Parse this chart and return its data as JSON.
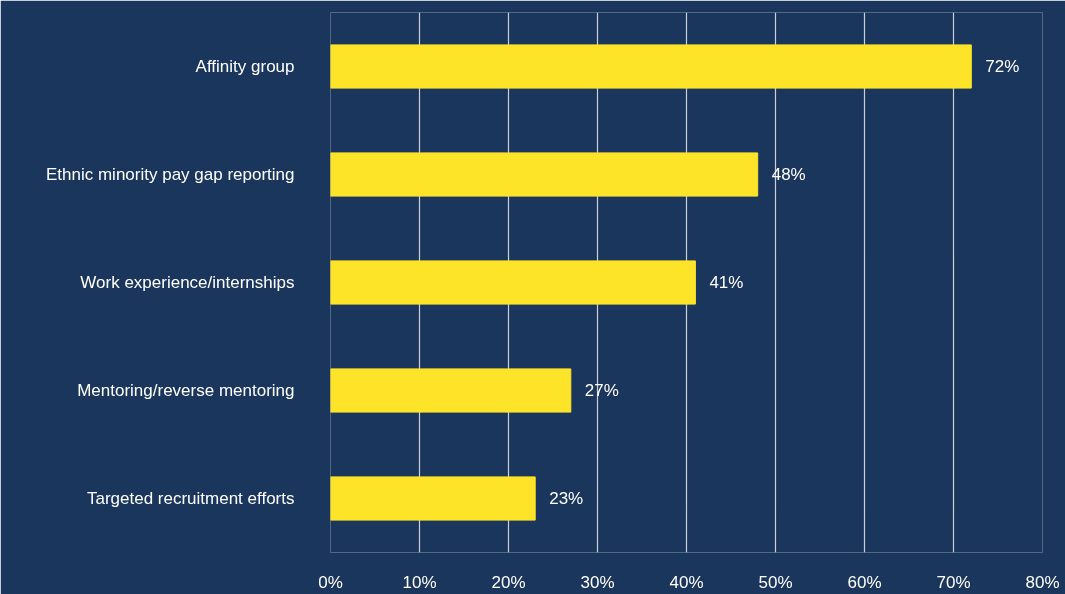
{
  "chart_data": {
    "type": "bar",
    "orientation": "horizontal",
    "categories": [
      "Affinity group",
      "Ethnic minority pay gap reporting",
      "Work experience/internships",
      "Mentoring/reverse mentoring",
      "Targeted recruitment efforts"
    ],
    "values": [
      72,
      48,
      41,
      27,
      23
    ],
    "value_labels": [
      "72%",
      "48%",
      "41%",
      "27%",
      "23%"
    ],
    "color": "#fde428",
    "xlim": [
      0,
      80
    ],
    "xticks": [
      {
        "value": 0,
        "label": "0%"
      },
      {
        "value": 10,
        "label": "10%"
      },
      {
        "value": 20,
        "label": "20%"
      },
      {
        "value": 30,
        "label": "30%"
      },
      {
        "value": 40,
        "label": "40%"
      },
      {
        "value": 50,
        "label": "50%"
      },
      {
        "value": 60,
        "label": "60%"
      },
      {
        "value": 70,
        "label": "70%"
      },
      {
        "value": 80,
        "label": "80%"
      }
    ],
    "grid": "x"
  }
}
